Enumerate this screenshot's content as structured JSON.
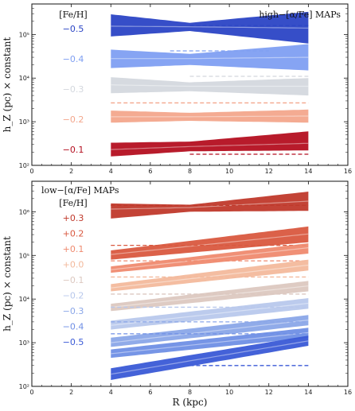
{
  "chart_data": [
    {
      "type": "area",
      "annotation": "high−[α/Fe] MAPs",
      "legend_title": "[Fe/H]",
      "ylabel": "h_Z (pc) × constant",
      "xlabel": "",
      "xlim": [
        0,
        16
      ],
      "ylim": [
        100,
        500000
      ],
      "yscale": "log",
      "xticks": [
        "0",
        "2",
        "4",
        "6",
        "8",
        "10",
        "12",
        "14",
        "16"
      ],
      "yticks": [
        {
          "value": 100,
          "label": "10²"
        },
        {
          "value": 1000,
          "label": "10³"
        },
        {
          "value": 10000,
          "label": "10⁴"
        },
        {
          "value": 100000,
          "label": "10⁵"
        }
      ],
      "series": [
        {
          "name": "−0.5",
          "color": "#2b45c5",
          "x": [
            4,
            8,
            14
          ],
          "mid": [
            155000,
            150000,
            140000
          ],
          "lo": [
            90000,
            120000,
            62000
          ],
          "hi": [
            290000,
            185000,
            330000
          ],
          "ref_y": 160000,
          "ref_x": [
            8,
            14
          ]
        },
        {
          "name": "−0.4",
          "color": "#7f9ff2",
          "x": [
            4,
            8,
            14
          ],
          "mid": [
            28000,
            28000,
            30000
          ],
          "lo": [
            17000,
            20000,
            15000
          ],
          "hi": [
            45000,
            36000,
            60000
          ],
          "ref_y": 42000,
          "ref_x": [
            7,
            12
          ]
        },
        {
          "name": "−0.3",
          "color": "#d4d8de",
          "x": [
            4,
            8,
            14
          ],
          "mid": [
            7000,
            6500,
            6500
          ],
          "lo": [
            4500,
            5000,
            4000
          ],
          "hi": [
            10500,
            8000,
            10000
          ],
          "ref_y": 11000,
          "ref_x": [
            8,
            14
          ]
        },
        {
          "name": "−0.2",
          "color": "#f3a68c",
          "x": [
            4,
            8,
            14
          ],
          "mid": [
            1300,
            1300,
            1350
          ],
          "lo": [
            950,
            1050,
            950
          ],
          "hi": [
            1800,
            1600,
            1900
          ],
          "ref_y": 2700,
          "ref_x": [
            4,
            14
          ]
        },
        {
          "name": "−0.1",
          "color": "#b40f20",
          "x": [
            4,
            8,
            14
          ],
          "mid": [
            230,
            270,
            320
          ],
          "lo": [
            160,
            210,
            220
          ],
          "hi": [
            330,
            350,
            600
          ],
          "ref_y": 180,
          "ref_x": [
            8,
            14
          ]
        }
      ]
    },
    {
      "type": "area",
      "annotation": "low−[α/Fe] MAPs",
      "legend_title": "[Fe/H]",
      "ylabel": "h_Z (pc) × constant",
      "xlabel": "R (kpc)",
      "xlim": [
        0,
        16
      ],
      "ylim": [
        100,
        5000000
      ],
      "yscale": "log",
      "xticks": [
        "0",
        "2",
        "4",
        "6",
        "8",
        "10",
        "12",
        "14",
        "16"
      ],
      "yticks": [
        {
          "value": 100,
          "label": "10²"
        },
        {
          "value": 1000,
          "label": "10³"
        },
        {
          "value": 10000,
          "label": "10⁴"
        },
        {
          "value": 100000,
          "label": "10⁵"
        },
        {
          "value": 1000000,
          "label": "10⁶"
        }
      ],
      "series": [
        {
          "name": "+0.3",
          "color": "#c0392b",
          "x": [
            4,
            8,
            14
          ],
          "mid": [
            1150000,
            1250000,
            1750000
          ],
          "lo": [
            700000,
            1000000,
            1050000
          ],
          "hi": [
            1550000,
            1450000,
            2900000
          ],
          "ref_y": 1400000,
          "ref_x": [
            4,
            14
          ]
        },
        {
          "name": "+0.2",
          "color": "#d9583f",
          "x": [
            4,
            14
          ],
          "mid": [
            105000,
            310000
          ],
          "lo": [
            80000,
            200000
          ],
          "hi": [
            130000,
            460000
          ],
          "ref_y": 170000,
          "ref_x": [
            4,
            14
          ]
        },
        {
          "name": "+0.1",
          "color": "#ef8a6f",
          "x": [
            4,
            14
          ],
          "mid": [
            47000,
            150000
          ],
          "lo": [
            40000,
            110000
          ],
          "hi": [
            56000,
            190000
          ],
          "ref_y": 75000,
          "ref_x": [
            4,
            14
          ]
        },
        {
          "name": "+0.0",
          "color": "#f3b99c",
          "x": [
            4,
            14
          ],
          "mid": [
            18000,
            60000
          ],
          "lo": [
            15000,
            45000
          ],
          "hi": [
            22000,
            80000
          ],
          "ref_y": 32000,
          "ref_x": [
            4,
            14
          ]
        },
        {
          "name": "−0.1",
          "color": "#dcc8c0",
          "x": [
            4,
            14
          ],
          "mid": [
            6500,
            20000
          ],
          "lo": [
            5300,
            15000
          ],
          "hi": [
            7800,
            26000
          ],
          "ref_y": 13000,
          "ref_x": [
            4,
            14
          ]
        },
        {
          "name": "−0.2",
          "color": "#b8c8ec",
          "x": [
            4,
            14
          ],
          "mid": [
            2500,
            8000
          ],
          "lo": [
            2000,
            6000
          ],
          "hi": [
            3200,
            10500
          ],
          "ref_y": 6500,
          "ref_x": [
            4,
            14
          ]
        },
        {
          "name": "−0.3",
          "color": "#8aa6e8",
          "x": [
            4,
            14
          ],
          "mid": [
            1000,
            3300
          ],
          "lo": [
            800,
            2500
          ],
          "hi": [
            1300,
            4300
          ],
          "ref_y": 3000,
          "ref_x": [
            4,
            14
          ]
        },
        {
          "name": "−0.4",
          "color": "#6f8fe5",
          "x": [
            4,
            14
          ],
          "mid": [
            560,
            1700
          ],
          "lo": [
            450,
            1300
          ],
          "hi": [
            700,
            2200
          ],
          "ref_y": 1600,
          "ref_x": [
            4,
            14
          ]
        },
        {
          "name": "−0.5",
          "color": "#3a5ad6",
          "x": [
            4,
            14
          ],
          "mid": [
            190,
            1100
          ],
          "lo": [
            140,
            850
          ],
          "hi": [
            260,
            1450
          ],
          "ref_y": 300,
          "ref_x": [
            8,
            14
          ]
        }
      ]
    }
  ]
}
